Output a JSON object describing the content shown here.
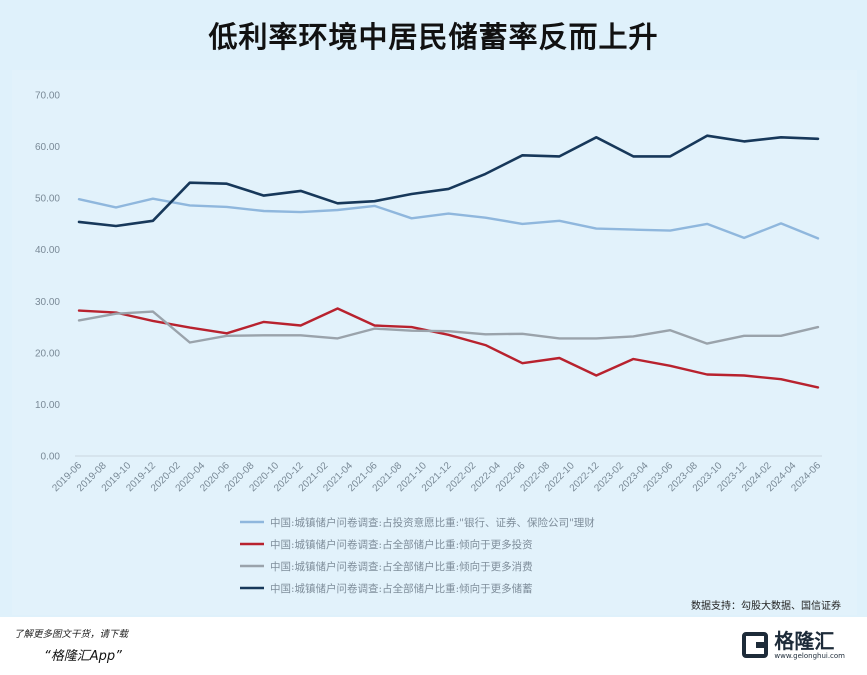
{
  "title": "低利率环境中居民储蓄率反而上升",
  "source": "数据支持：勾股大数据、国信证券",
  "footer": {
    "note": "了解更多图文干货，请下载",
    "app": "“格隆汇App”",
    "brand": "格隆汇",
    "brand_url": "www.gelonghui.com"
  },
  "chart_data": {
    "type": "line",
    "ylim": [
      0,
      70
    ],
    "y_ticks": [
      "0.00",
      "10.00",
      "20.00",
      "30.00",
      "40.00",
      "50.00",
      "60.00",
      "70.00"
    ],
    "grid": false,
    "legend_position": "bottom",
    "categories": [
      "2019-06",
      "2019-08",
      "2019-10",
      "2019-12",
      "2020-02",
      "2020-04",
      "2020-06",
      "2020-08",
      "2020-10",
      "2020-12",
      "2021-02",
      "2021-04",
      "2021-06",
      "2021-08",
      "2021-10",
      "2021-12",
      "2022-02",
      "2022-04",
      "2022-06",
      "2022-08",
      "2022-10",
      "2022-12",
      "2023-02",
      "2023-04",
      "2023-06",
      "2023-08",
      "2023-10",
      "2023-12",
      "2024-02",
      "2024-04",
      "2024-06"
    ],
    "series": [
      {
        "name": "中国:城镇储户问卷调查:占投资意愿比重:\"银行、证券、保险公司\"理财",
        "color": "#8fb7dd",
        "x": [
          "2019-06",
          "2019-09",
          "2019-12",
          "2020-03",
          "2020-06",
          "2020-09",
          "2020-12",
          "2021-03",
          "2021-06",
          "2021-09",
          "2021-12",
          "2022-03",
          "2022-06",
          "2022-09",
          "2022-12",
          "2023-03",
          "2023-06",
          "2023-09",
          "2023-12",
          "2024-03",
          "2024-06"
        ],
        "values": [
          49.8,
          48.2,
          49.9,
          48.6,
          48.3,
          47.5,
          47.3,
          47.7,
          48.5,
          46.1,
          47.0,
          46.2,
          45.0,
          45.6,
          44.1,
          43.9,
          43.7,
          45.0,
          42.3,
          45.1,
          42.2
        ]
      },
      {
        "name": "中国:城镇储户问卷调查:占全部储户比重:倾向于更多投资",
        "color": "#b8222e",
        "x": [
          "2019-06",
          "2019-09",
          "2019-12",
          "2020-03",
          "2020-06",
          "2020-09",
          "2020-12",
          "2021-03",
          "2021-06",
          "2021-09",
          "2021-12",
          "2022-03",
          "2022-06",
          "2022-09",
          "2022-12",
          "2023-03",
          "2023-06",
          "2023-09",
          "2023-12",
          "2024-03",
          "2024-06"
        ],
        "values": [
          28.2,
          27.8,
          26.2,
          24.9,
          23.8,
          26.0,
          25.3,
          28.6,
          25.3,
          25.0,
          23.5,
          21.5,
          18.0,
          19.0,
          15.6,
          18.8,
          17.5,
          15.8,
          15.6,
          14.9,
          13.3
        ]
      },
      {
        "name": "中国:城镇储户问卷调查:占全部储户比重:倾向于更多消费",
        "color": "#9aa3ab",
        "x": [
          "2019-06",
          "2019-09",
          "2019-12",
          "2020-03",
          "2020-06",
          "2020-09",
          "2020-12",
          "2021-03",
          "2021-06",
          "2021-09",
          "2021-12",
          "2022-03",
          "2022-06",
          "2022-09",
          "2022-12",
          "2023-03",
          "2023-06",
          "2023-09",
          "2023-12",
          "2024-03",
          "2024-06"
        ],
        "values": [
          26.3,
          27.6,
          28.0,
          22.0,
          23.3,
          23.4,
          23.4,
          22.8,
          24.7,
          24.3,
          24.2,
          23.6,
          23.7,
          22.8,
          22.8,
          23.2,
          24.4,
          21.8,
          23.3,
          23.3,
          25.0
        ]
      },
      {
        "name": "中国:城镇储户问卷调查:占全部储户比重:倾向于更多储蓄",
        "color": "#17385a",
        "x": [
          "2019-06",
          "2019-09",
          "2019-12",
          "2020-03",
          "2020-06",
          "2020-09",
          "2020-12",
          "2021-03",
          "2021-06",
          "2021-09",
          "2021-12",
          "2022-03",
          "2022-06",
          "2022-09",
          "2022-12",
          "2023-03",
          "2023-06",
          "2023-09",
          "2023-12",
          "2024-03",
          "2024-06"
        ],
        "values": [
          45.4,
          44.6,
          45.6,
          53.0,
          52.8,
          50.5,
          51.4,
          49.0,
          49.4,
          50.8,
          51.8,
          54.7,
          58.3,
          58.1,
          61.8,
          58.1,
          58.1,
          62.1,
          61.0,
          61.8,
          61.5
        ]
      }
    ]
  }
}
